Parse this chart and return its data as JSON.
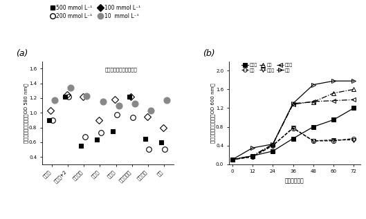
{
  "panel_a": {
    "title": "马黊薯葡萄糖缺脂培养基",
    "ylabel": "酵母细胞数量（吸光值OD 580 nm）",
    "ylim": [
      0.3,
      1.7
    ],
    "yticks": [
      0.4,
      0.6,
      0.8,
      1.0,
      1.2,
      1.4,
      1.6
    ],
    "categories": [
      "葡萄糖",
      "葡萄糖+2",
      "抗坏血酸",
      "柠檬酸",
      "半乳糖",
      "葡萄糖酸酸",
      "没食子酸",
      "芙糖"
    ],
    "s500_vals": [
      0.9,
      1.22,
      0.55,
      0.64,
      0.75,
      1.22,
      0.65,
      0.6
    ],
    "s200_vals": [
      0.9,
      1.22,
      0.67,
      0.73,
      0.97,
      0.94,
      0.5,
      0.5
    ],
    "s100_vals": [
      1.03,
      1.25,
      1.22,
      0.9,
      1.18,
      1.22,
      0.95,
      0.8
    ],
    "s10_vals": [
      1.17,
      1.34,
      1.23,
      1.15,
      1.1,
      1.12,
      1.03,
      1.17
    ]
  },
  "panel_b": {
    "xlabel": "时间（小时）",
    "ylabel": "酵母生长动态（吸光值OD 600 nm）",
    "ylim": [
      0.0,
      2.2
    ],
    "yticks": [
      0.0,
      0.4,
      0.8,
      1.2,
      1.6,
      2.0
    ],
    "xticks": [
      0,
      12,
      24,
      36,
      48,
      60,
      72
    ],
    "time": [
      0,
      12,
      24,
      36,
      48,
      60,
      72
    ],
    "galactose": [
      0.1,
      0.18,
      0.28,
      0.55,
      0.8,
      0.95,
      1.2
    ],
    "fructose": [
      0.1,
      0.16,
      0.4,
      0.77,
      0.5,
      0.5,
      0.55
    ],
    "sucrose": [
      0.1,
      0.18,
      0.42,
      1.3,
      1.33,
      1.52,
      1.6
    ],
    "glucose": [
      0.1,
      0.16,
      0.4,
      0.78,
      0.5,
      0.52,
      0.52
    ],
    "maltose": [
      0.1,
      0.18,
      0.43,
      1.28,
      1.34,
      1.36,
      1.38
    ],
    "nosugar": [
      0.1,
      0.35,
      0.43,
      1.3,
      1.7,
      1.78,
      1.78
    ]
  },
  "legend_a_labels": [
    "500 mmol L⁻¹",
    "200 mmol L⁻¹",
    "100 mmol L⁻¹",
    "10  mmol L⁻¹"
  ],
  "legend_b_labels": [
    "半乳糖",
    "果糖",
    "蔗糖",
    "葡萄糖",
    "麦芽糖",
    "无糖"
  ]
}
